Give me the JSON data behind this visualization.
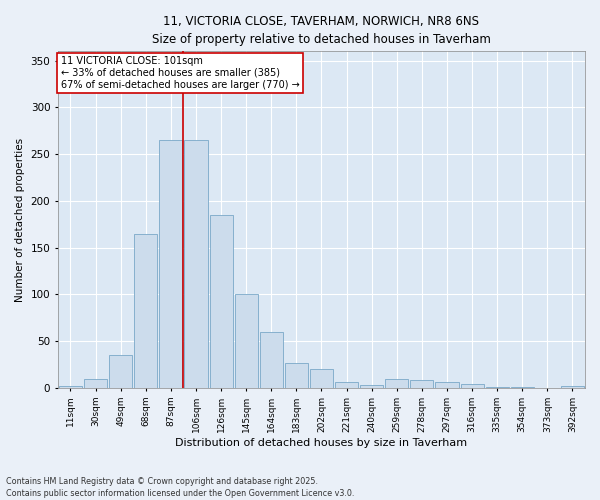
{
  "title_line1": "11, VICTORIA CLOSE, TAVERHAM, NORWICH, NR8 6NS",
  "title_line2": "Size of property relative to detached houses in Taverham",
  "xlabel": "Distribution of detached houses by size in Taverham",
  "ylabel": "Number of detached properties",
  "bar_color": "#ccdcec",
  "bar_edge_color": "#7aa8c8",
  "background_color": "#dce8f4",
  "grid_color": "#ffffff",
  "annotation_box_color": "#cc0000",
  "annotation_line_color": "#cc0000",
  "fig_background_color": "#eaf0f8",
  "categories": [
    "11sqm",
    "30sqm",
    "49sqm",
    "68sqm",
    "87sqm",
    "106sqm",
    "126sqm",
    "145sqm",
    "164sqm",
    "183sqm",
    "202sqm",
    "221sqm",
    "240sqm",
    "259sqm",
    "278sqm",
    "297sqm",
    "316sqm",
    "335sqm",
    "354sqm",
    "373sqm",
    "392sqm"
  ],
  "values": [
    2,
    10,
    35,
    165,
    265,
    265,
    185,
    100,
    60,
    27,
    20,
    6,
    3,
    10,
    8,
    6,
    4,
    1,
    1,
    0,
    2
  ],
  "annotation_text_line1": "11 VICTORIA CLOSE: 101sqm",
  "annotation_text_line2": "← 33% of detached houses are smaller (385)",
  "annotation_text_line3": "67% of semi-detached houses are larger (770) →",
  "vline_x_index": 4.5,
  "ylim": [
    0,
    360
  ],
  "yticks": [
    0,
    50,
    100,
    150,
    200,
    250,
    300,
    350
  ],
  "footnote_line1": "Contains HM Land Registry data © Crown copyright and database right 2025.",
  "footnote_line2": "Contains public sector information licensed under the Open Government Licence v3.0."
}
